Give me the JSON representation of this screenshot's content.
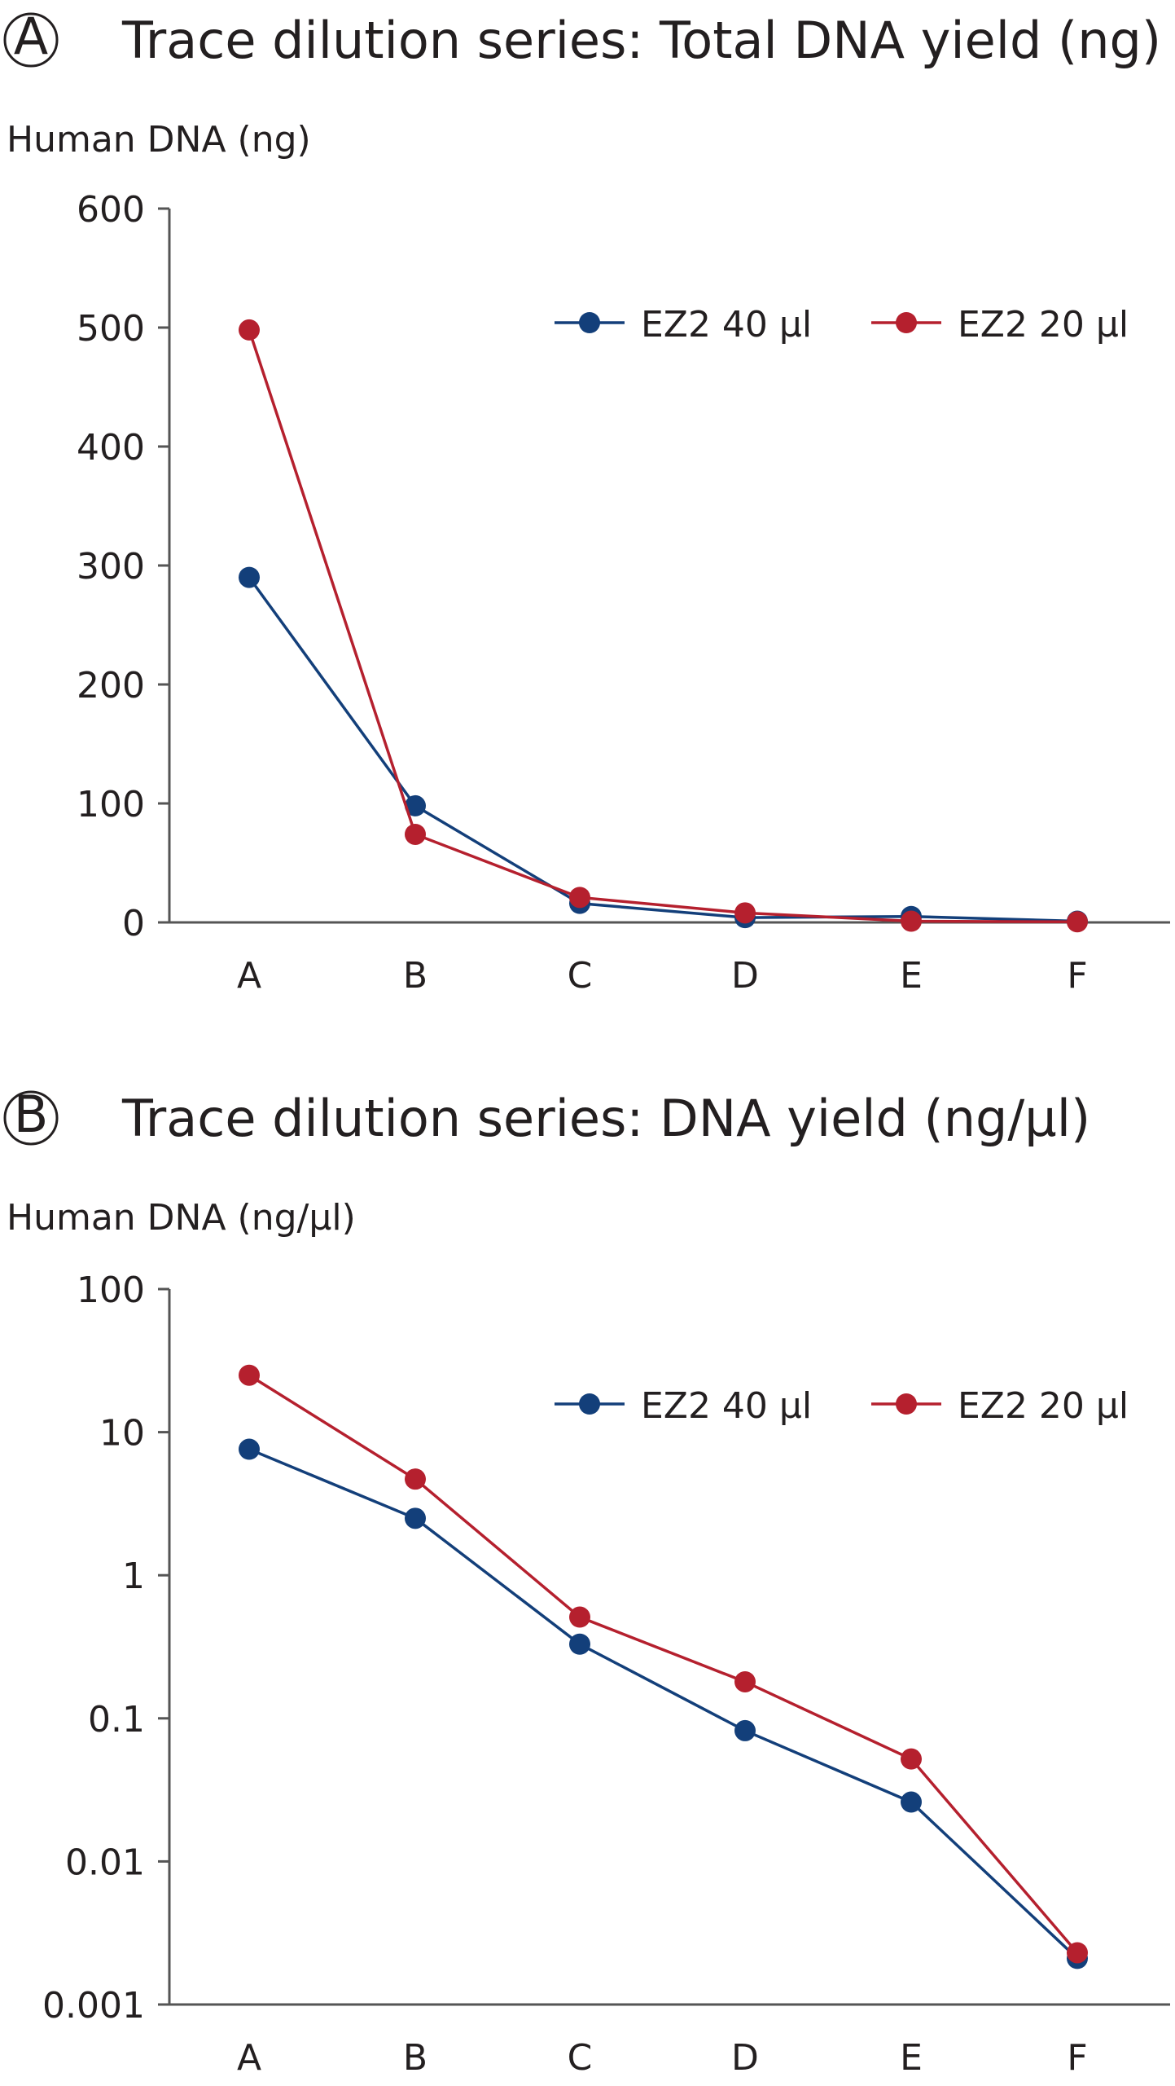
{
  "colors": {
    "ez2_40": "#133f7a",
    "ez2_20": "#b5202e"
  },
  "chart_data": [
    {
      "type": "line",
      "panel_letter": "A",
      "title": "Trace dilution series: Total DNA yield (ng)",
      "xlabel": "",
      "ylabel": "Human DNA (ng)",
      "scale": "linear",
      "ylim": [
        0,
        600
      ],
      "yticks": [
        "0",
        "100",
        "200",
        "300",
        "400",
        "500",
        "600"
      ],
      "ytick_values": [
        0,
        100,
        200,
        300,
        400,
        500,
        600
      ],
      "categories": [
        "A",
        "B",
        "C",
        "D",
        "E",
        "F"
      ],
      "legend_position": "top-right",
      "series": [
        {
          "name": "EZ2 40 µl",
          "color_key": "ez2_40",
          "values": [
            290,
            98,
            16,
            4,
            5,
            1
          ]
        },
        {
          "name": "EZ2 20 µl",
          "color_key": "ez2_20",
          "values": [
            498,
            74,
            21,
            8,
            1,
            0.5
          ]
        }
      ]
    },
    {
      "type": "line",
      "panel_letter": "B",
      "title": "Trace dilution series: DNA yield (ng/µl)",
      "xlabel": "",
      "ylabel": "Human DNA (ng/µl)",
      "scale": "log",
      "ylim": [
        0.001,
        100
      ],
      "yticks": [
        "0.001",
        "0.01",
        "0.1",
        "1",
        "10",
        "100"
      ],
      "ytick_values": [
        0.001,
        0.01,
        0.1,
        1,
        10,
        100
      ],
      "categories": [
        "A",
        "B",
        "C",
        "D",
        "E",
        "F"
      ],
      "legend_position": "top-right",
      "series": [
        {
          "name": "EZ2 40 µl",
          "color_key": "ez2_40",
          "values": [
            7.6,
            2.5,
            0.33,
            0.082,
            0.026,
            0.0021
          ]
        },
        {
          "name": "EZ2 20 µl",
          "color_key": "ez2_20",
          "values": [
            25,
            4.7,
            0.51,
            0.18,
            0.052,
            0.0023
          ]
        }
      ]
    }
  ]
}
